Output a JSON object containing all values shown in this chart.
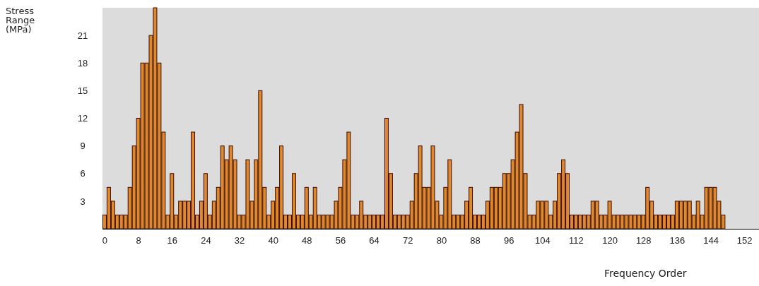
{
  "chart_data": {
    "type": "bar",
    "ylabel": "Stress Range (MPa)",
    "xlabel": "Frequency Order",
    "x": [
      0,
      1,
      2,
      3,
      4,
      5,
      6,
      7,
      8,
      9,
      10,
      11,
      12,
      13,
      14,
      15,
      16,
      17,
      18,
      19,
      20,
      21,
      22,
      23,
      24,
      25,
      26,
      27,
      28,
      29,
      30,
      31,
      32,
      33,
      34,
      35,
      36,
      37,
      38,
      39,
      40,
      41,
      42,
      43,
      44,
      45,
      46,
      47,
      48,
      49,
      50,
      51,
      52,
      53,
      54,
      55,
      56,
      57,
      58,
      59,
      60,
      61,
      62,
      63,
      64,
      65,
      66,
      67,
      68,
      69,
      70,
      71,
      72,
      73,
      74,
      75,
      76,
      77,
      78,
      79,
      80,
      81,
      82,
      83,
      84,
      85,
      86,
      87,
      88,
      89,
      90,
      91,
      92,
      93,
      94,
      95,
      96,
      97,
      98,
      99,
      100,
      101,
      102,
      103,
      104,
      105,
      106,
      107,
      108,
      109,
      110,
      111,
      112,
      113,
      114,
      115,
      116,
      117,
      118,
      119,
      120,
      121,
      122,
      123,
      124,
      125,
      126,
      127,
      128,
      129,
      130,
      131,
      132,
      133,
      134,
      135,
      136,
      137,
      138,
      139,
      140,
      141,
      142,
      143,
      144,
      145,
      146,
      147
    ],
    "values": [
      1.5,
      4.5,
      3,
      1.5,
      1.5,
      1.5,
      4.5,
      9,
      12,
      18,
      18,
      21,
      24,
      18,
      10.5,
      1.5,
      6,
      1.5,
      3,
      3,
      3,
      10.5,
      1.5,
      3,
      6,
      1.5,
      3,
      4.5,
      9,
      7.5,
      9,
      7.5,
      1.5,
      1.5,
      7.5,
      3,
      7.5,
      15,
      4.5,
      1.5,
      3,
      4.5,
      9,
      1.5,
      1.5,
      6,
      1.5,
      1.5,
      4.5,
      1.5,
      4.5,
      1.5,
      1.5,
      1.5,
      1.5,
      3,
      4.5,
      7.5,
      10.5,
      1.5,
      1.5,
      3,
      1.5,
      1.5,
      1.5,
      1.5,
      1.5,
      12,
      6,
      1.5,
      1.5,
      1.5,
      1.5,
      3,
      6,
      9,
      4.5,
      4.5,
      9,
      3,
      1.5,
      4.5,
      7.5,
      1.5,
      1.5,
      1.5,
      3,
      4.5,
      1.5,
      1.5,
      1.5,
      3,
      4.5,
      4.5,
      4.5,
      6,
      6,
      7.5,
      10.5,
      13.5,
      6,
      1.5,
      1.5,
      3,
      3,
      3,
      1.5,
      3,
      6,
      7.5,
      6,
      1.5,
      1.5,
      1.5,
      1.5,
      1.5,
      3,
      3,
      1.5,
      1.5,
      3,
      1.5,
      1.5,
      1.5,
      1.5,
      1.5,
      1.5,
      1.5,
      1.5,
      4.5,
      3,
      1.5,
      1.5,
      1.5,
      1.5,
      1.5,
      3,
      3,
      3,
      3,
      1.5,
      3,
      1.5,
      4.5,
      4.5,
      4.5,
      3,
      1.5
    ],
    "color": "#e0882c",
    "xlim": [
      -0.5,
      155.5
    ],
    "xticks": [
      0,
      8,
      16,
      24,
      32,
      40,
      48,
      56,
      64,
      72,
      80,
      88,
      96,
      104,
      112,
      120,
      128,
      136,
      144,
      152
    ],
    "ylim": [
      0,
      24
    ],
    "yticks": [
      3,
      6,
      9,
      12,
      15,
      18,
      21
    ]
  }
}
